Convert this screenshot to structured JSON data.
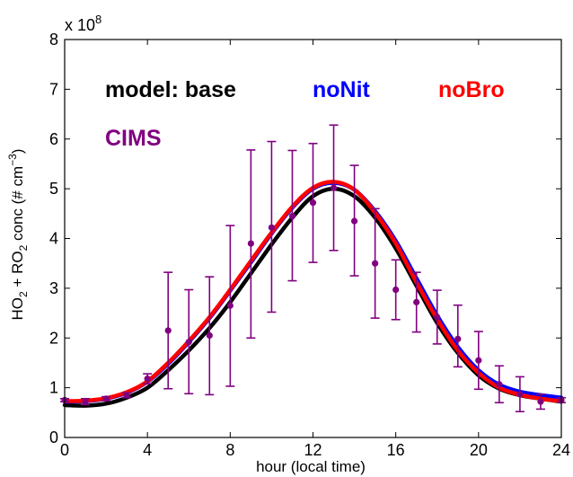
{
  "chart_data": {
    "type": "line",
    "xlabel": "hour (local time)",
    "ylabel_parts": [
      "HO",
      "2",
      " + RO",
      "2",
      " conc (# cm",
      "−3",
      ")"
    ],
    "y_multiplier": {
      "base": "x 10",
      "exponent": "8"
    },
    "xlim": [
      0,
      24
    ],
    "ylim": [
      0,
      8
    ],
    "xticks": [
      0,
      4,
      8,
      12,
      16,
      20,
      24
    ],
    "yticks": [
      0,
      1,
      2,
      3,
      4,
      5,
      6,
      7,
      8
    ],
    "grid": false,
    "legend": {
      "placement": "top-left",
      "entries": [
        {
          "label": "model: base",
          "color": "#000000"
        },
        {
          "label": "noNit",
          "color": "#0000ff"
        },
        {
          "label": "noBro",
          "color": "#ff0000"
        },
        {
          "label": "CIMS",
          "color": "#800080"
        }
      ]
    },
    "series": [
      {
        "name": "model: base",
        "color": "#000000",
        "type": "line",
        "x": [
          0,
          1,
          2,
          3,
          4,
          5,
          6,
          7,
          8,
          9,
          10,
          11,
          12,
          13,
          14,
          15,
          16,
          17,
          18,
          19,
          20,
          21,
          22,
          23,
          24
        ],
        "y": [
          0.65,
          0.64,
          0.68,
          0.8,
          1.0,
          1.35,
          1.75,
          2.2,
          2.72,
          3.3,
          3.88,
          4.42,
          4.85,
          5.0,
          4.85,
          4.42,
          3.8,
          3.05,
          2.3,
          1.7,
          1.25,
          0.98,
          0.85,
          0.78,
          0.72
        ]
      },
      {
        "name": "noNit",
        "color": "#0000ff",
        "type": "line",
        "x": [
          0,
          1,
          2,
          3,
          4,
          5,
          6,
          7,
          8,
          9,
          10,
          11,
          12,
          13,
          14,
          15,
          16,
          17,
          18,
          19,
          20,
          21,
          22,
          23,
          24
        ],
        "y": [
          0.72,
          0.73,
          0.78,
          0.9,
          1.12,
          1.48,
          1.92,
          2.4,
          2.95,
          3.52,
          4.1,
          4.62,
          5.0,
          5.12,
          4.98,
          4.55,
          3.95,
          3.2,
          2.45,
          1.82,
          1.35,
          1.06,
          0.92,
          0.85,
          0.8
        ]
      },
      {
        "name": "noBro",
        "color": "#ff0000",
        "type": "line",
        "x": [
          0,
          1,
          2,
          3,
          4,
          5,
          6,
          7,
          8,
          9,
          10,
          11,
          12,
          13,
          14,
          15,
          16,
          17,
          18,
          19,
          20,
          21,
          22,
          23,
          24
        ],
        "y": [
          0.73,
          0.74,
          0.79,
          0.91,
          1.13,
          1.5,
          1.94,
          2.42,
          2.97,
          3.55,
          4.12,
          4.64,
          5.02,
          5.14,
          4.98,
          4.52,
          3.9,
          3.12,
          2.38,
          1.75,
          1.3,
          1.0,
          0.86,
          0.78,
          0.73
        ]
      },
      {
        "name": "CIMS",
        "color": "#800080",
        "type": "scatter",
        "x": [
          0,
          1,
          2,
          3,
          4,
          5,
          6,
          7,
          8,
          9,
          10,
          11,
          12,
          13,
          14,
          15,
          16,
          17,
          18,
          19,
          20,
          21,
          22,
          23,
          24
        ],
        "y": [
          0.75,
          0.72,
          0.78,
          0.85,
          1.18,
          2.15,
          1.92,
          2.05,
          2.65,
          3.9,
          4.22,
          4.45,
          4.72,
          5.02,
          4.35,
          3.5,
          2.97,
          2.72,
          2.42,
          1.98,
          1.55,
          1.07,
          0.87,
          0.72,
          0.75
        ],
        "err_low": [
          0.72,
          0.66,
          0.74,
          0.8,
          1.08,
          0.98,
          0.88,
          0.86,
          1.03,
          2.0,
          2.52,
          3.15,
          3.52,
          3.76,
          3.25,
          2.4,
          2.37,
          2.12,
          1.88,
          1.42,
          0.97,
          0.7,
          0.52,
          0.57,
          0.7
        ],
        "err_high": [
          0.78,
          0.78,
          0.82,
          0.9,
          1.28,
          3.32,
          2.97,
          3.23,
          4.26,
          5.78,
          5.95,
          5.77,
          5.91,
          6.28,
          5.47,
          4.6,
          3.57,
          3.32,
          2.96,
          2.66,
          2.13,
          1.44,
          1.22,
          0.87,
          0.8
        ]
      }
    ]
  }
}
